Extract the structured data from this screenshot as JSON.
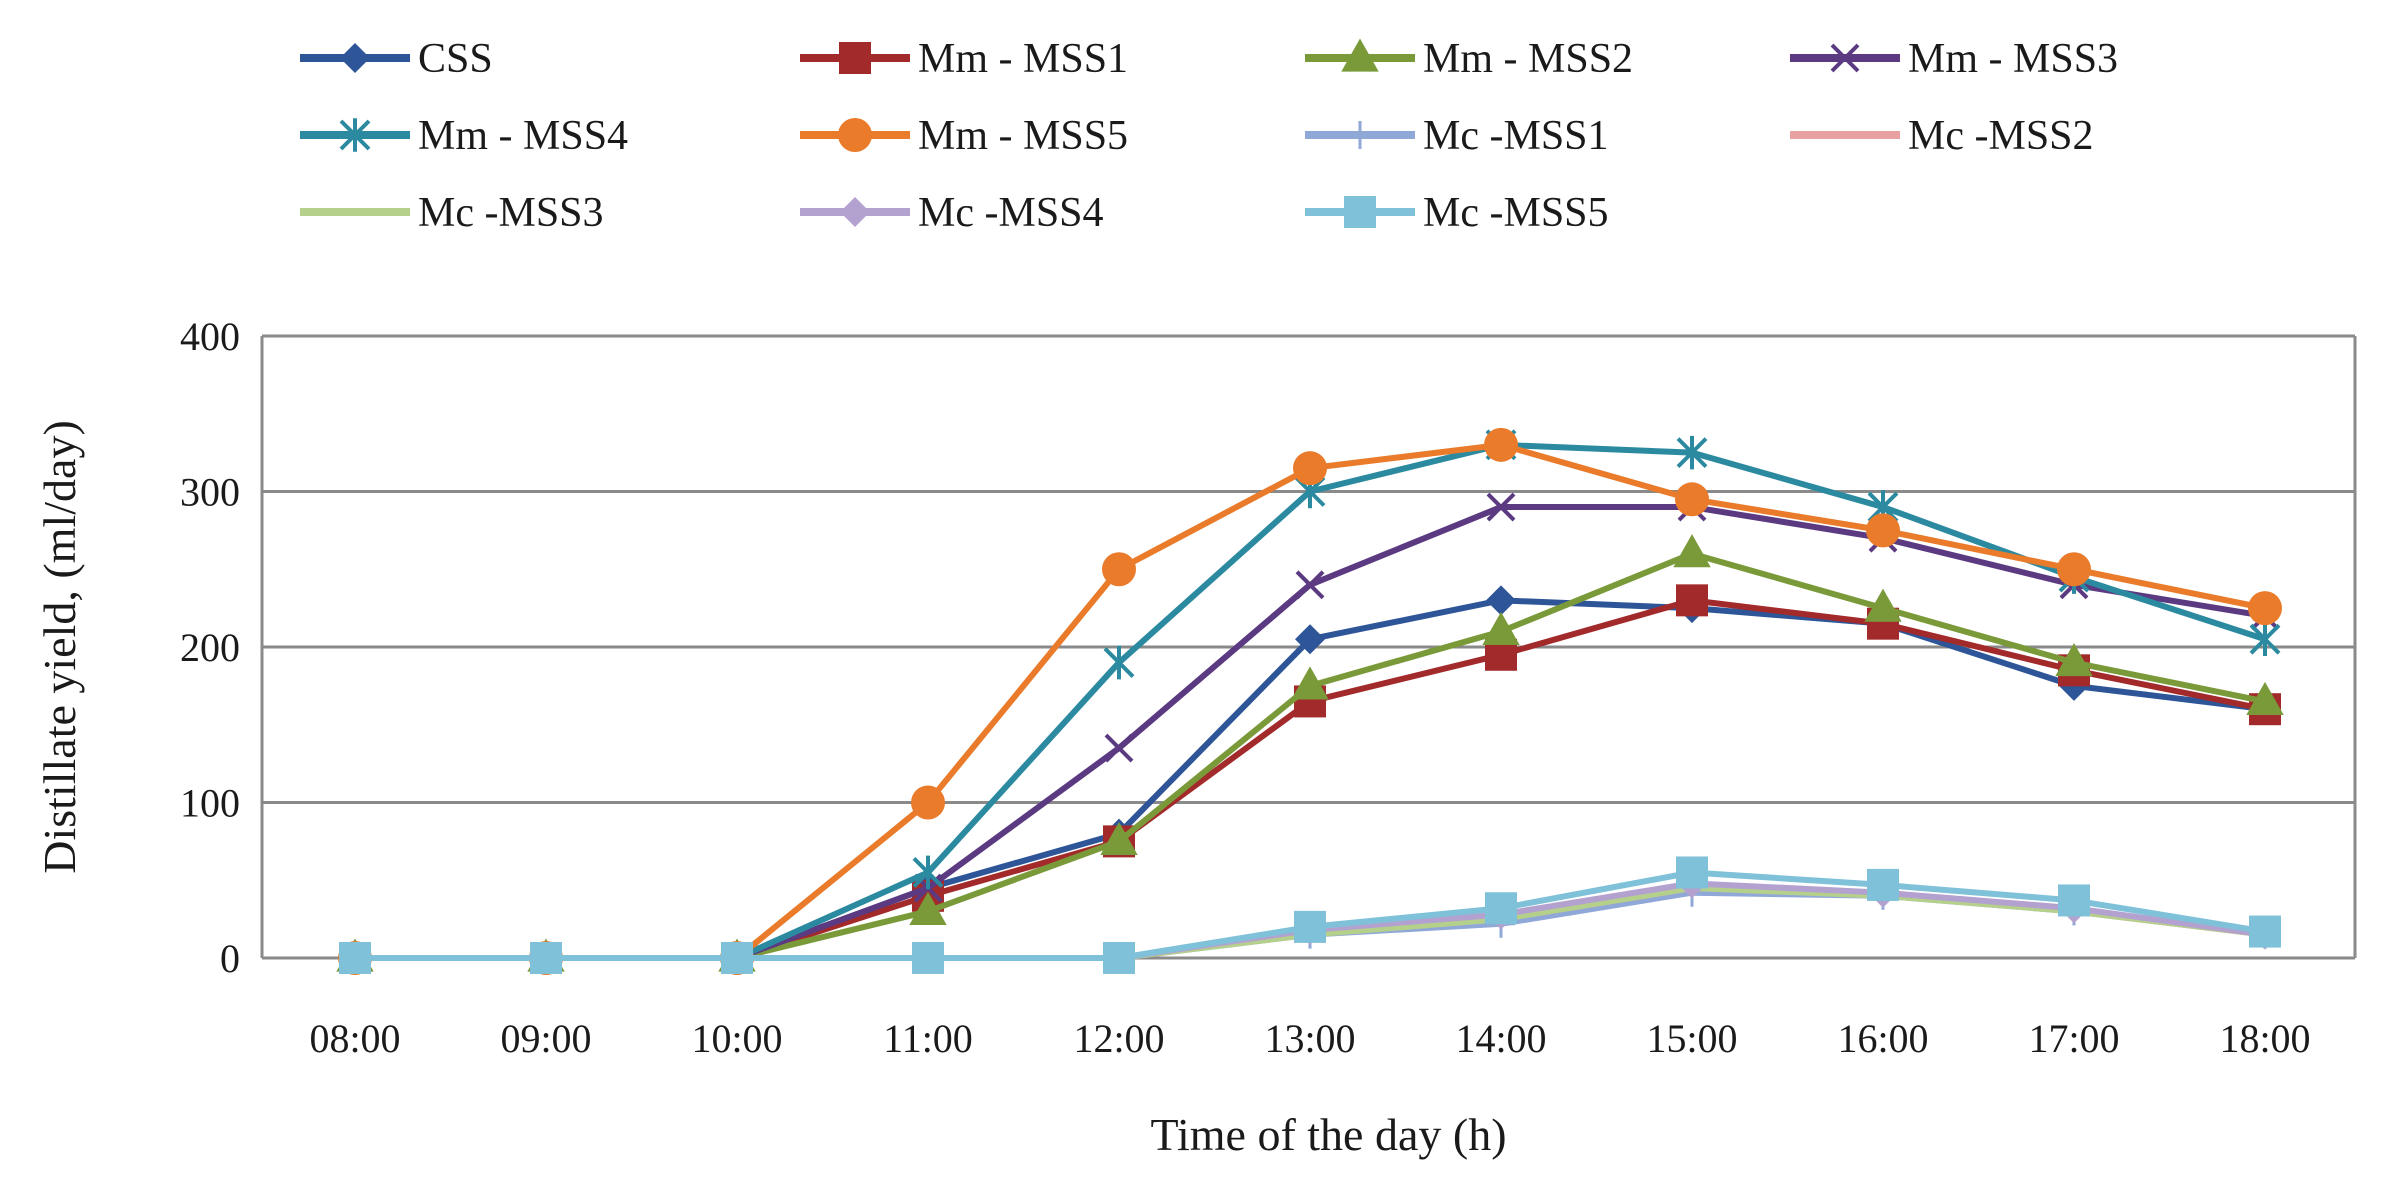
{
  "chart_data": {
    "type": "line",
    "title": "",
    "xlabel": "Time of the day (h)",
    "ylabel": "Distillate yield,  (ml/day)",
    "ylim": [
      0,
      400
    ],
    "yticks": [
      "0",
      "100",
      "200",
      "300",
      "400"
    ],
    "grid": "horizontal",
    "legend_position": "top",
    "categories": [
      "08:00",
      "09:00",
      "10:00",
      "11:00",
      "12:00",
      "13:00",
      "14:00",
      "15:00",
      "16:00",
      "17:00",
      "18:00"
    ],
    "series": [
      {
        "name": "CSS",
        "color": "#2e5597",
        "marker": "diamond",
        "values": [
          0,
          0,
          0,
          45,
          80,
          205,
          230,
          225,
          215,
          175,
          160
        ]
      },
      {
        "name": "Mm - MSS1",
        "color": "#a32a2a",
        "marker": "square",
        "values": [
          0,
          0,
          0,
          40,
          75,
          165,
          195,
          230,
          215,
          185,
          160
        ]
      },
      {
        "name": "Mm - MSS2",
        "color": "#7a9a3a",
        "marker": "triangle",
        "values": [
          0,
          0,
          0,
          30,
          75,
          175,
          210,
          260,
          225,
          190,
          165
        ]
      },
      {
        "name": "Mm - MSS3",
        "color": "#5b3a82",
        "marker": "x",
        "values": [
          0,
          0,
          0,
          45,
          135,
          240,
          290,
          290,
          270,
          240,
          220
        ]
      },
      {
        "name": "Mm - MSS4",
        "color": "#2b8aa0",
        "marker": "star",
        "values": [
          0,
          0,
          0,
          55,
          190,
          300,
          330,
          325,
          290,
          245,
          205
        ]
      },
      {
        "name": "Mm - MSS5",
        "color": "#e97b2b",
        "marker": "circle",
        "values": [
          0,
          0,
          0,
          100,
          250,
          315,
          330,
          295,
          275,
          250,
          225
        ]
      },
      {
        "name": "Mc -MSS1",
        "color": "#8fa8d8",
        "marker": "plus",
        "values": [
          0,
          0,
          0,
          0,
          0,
          15,
          22,
          42,
          40,
          30,
          15
        ]
      },
      {
        "name": "Mc -MSS2",
        "color": "#e8a0a0",
        "marker": "dash",
        "values": [
          0,
          0,
          0,
          0,
          0,
          17,
          25,
          45,
          42,
          30,
          15
        ]
      },
      {
        "name": "Mc -MSS3",
        "color": "#b5d08a",
        "marker": "dash",
        "values": [
          0,
          0,
          0,
          0,
          0,
          15,
          25,
          45,
          40,
          30,
          15
        ]
      },
      {
        "name": "Mc -MSS4",
        "color": "#b3a2d0",
        "marker": "diamond",
        "values": [
          0,
          0,
          0,
          0,
          0,
          18,
          28,
          48,
          42,
          32,
          15
        ]
      },
      {
        "name": "Mc -MSS5",
        "color": "#7ec1d8",
        "marker": "square",
        "values": [
          0,
          0,
          0,
          0,
          0,
          20,
          32,
          55,
          47,
          37,
          17
        ]
      }
    ]
  }
}
